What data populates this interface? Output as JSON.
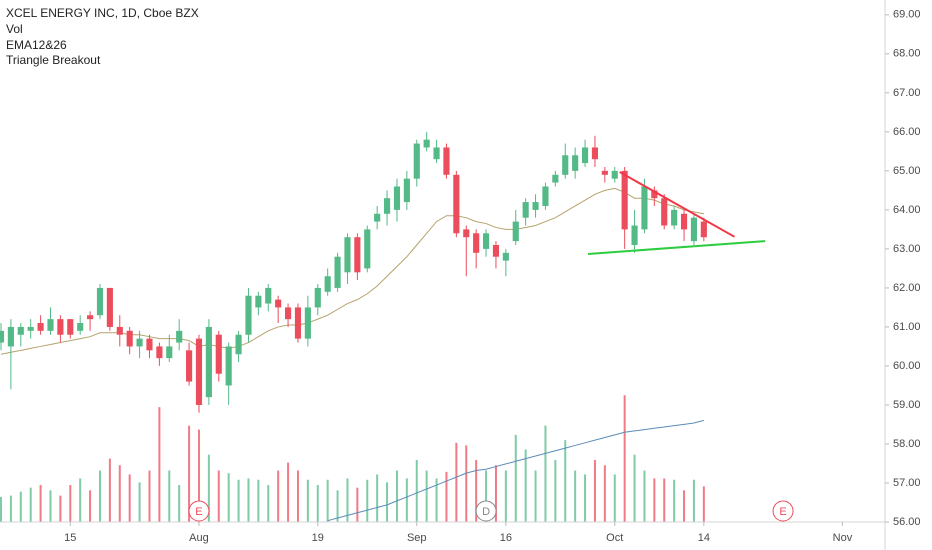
{
  "chart_data": {
    "type": "candlestick",
    "title": "XCEL ENERGY INC, 1D, Cboe BZX",
    "legend": [
      "Vol",
      "EMA12&26",
      "Triangle Breakout"
    ],
    "up_color": "#53b987",
    "down_color": "#eb4d5c",
    "open": [
      60.6,
      60.5,
      60.8,
      60.9,
      61.1,
      60.9,
      61.2,
      61.2,
      60.9,
      61.3,
      61.3,
      62.0,
      61.0,
      60.9,
      60.5,
      60.7,
      60.5,
      60.2,
      60.6,
      60.4,
      60.7,
      59.2,
      60.8,
      59.5,
      60.3,
      60.8,
      61.5,
      61.6,
      61.7,
      61.5,
      61.5,
      60.7,
      61.5,
      61.9,
      62.0,
      62.4,
      63.3,
      62.5,
      63.7,
      63.9,
      64.0,
      64.2,
      64.8,
      65.6,
      65.3,
      65.6,
      64.9,
      63.5,
      63.4,
      63.0,
      63.1,
      62.7,
      63.2,
      63.8,
      64.0,
      64.1,
      64.7,
      64.9,
      65.0,
      65.2,
      65.6,
      65.0,
      64.8,
      65.0,
      63.1,
      63.5,
      64.5,
      64.3,
      63.6,
      63.9,
      63.2,
      63.7
    ],
    "high": [
      61.1,
      61.2,
      61.1,
      61.2,
      61.3,
      61.5,
      61.3,
      61.2,
      61.3,
      61.4,
      62.1,
      62.0,
      61.3,
      61.0,
      60.9,
      60.8,
      60.6,
      60.8,
      61.2,
      60.6,
      60.8,
      61.2,
      60.9,
      60.6,
      60.9,
      62.0,
      61.9,
      62.1,
      61.8,
      61.6,
      61.6,
      61.8,
      62.1,
      62.5,
      62.9,
      63.4,
      63.4,
      63.6,
      64.1,
      64.5,
      64.8,
      65.0,
      65.8,
      66.0,
      65.8,
      65.7,
      65.0,
      63.6,
      63.5,
      63.5,
      63.2,
      63.0,
      64.0,
      64.3,
      64.4,
      64.7,
      65.0,
      65.7,
      65.6,
      65.8,
      65.9,
      65.1,
      65.1,
      65.1,
      64.0,
      64.8,
      64.6,
      64.4,
      64.1,
      64.0,
      63.9,
      63.8
    ],
    "low": [
      60.4,
      59.4,
      60.5,
      60.7,
      60.8,
      60.8,
      60.6,
      60.7,
      60.8,
      60.9,
      61.2,
      60.9,
      60.5,
      60.3,
      60.2,
      60.2,
      60.0,
      60.1,
      60.4,
      59.5,
      58.8,
      59.0,
      59.6,
      59.0,
      60.1,
      60.6,
      61.3,
      61.4,
      61.1,
      61.0,
      60.6,
      60.5,
      61.3,
      61.8,
      61.9,
      62.1,
      62.2,
      62.4,
      63.5,
      63.6,
      63.7,
      64.0,
      64.6,
      65.5,
      65.2,
      64.8,
      63.3,
      62.3,
      62.5,
      62.8,
      62.5,
      62.3,
      63.1,
      63.6,
      63.8,
      64.0,
      64.6,
      64.8,
      64.8,
      65.1,
      65.1,
      64.7,
      64.7,
      63.0,
      62.9,
      63.4,
      64.1,
      63.5,
      63.5,
      63.2,
      63.1,
      63.2
    ],
    "close": [
      60.9,
      61.0,
      61.0,
      61.0,
      60.9,
      61.2,
      60.8,
      60.8,
      61.1,
      61.2,
      62.0,
      61.0,
      60.8,
      60.5,
      60.7,
      60.4,
      60.2,
      60.5,
      60.9,
      59.6,
      59.0,
      61.0,
      59.8,
      60.5,
      60.8,
      61.8,
      61.8,
      62.0,
      61.5,
      61.2,
      60.7,
      61.5,
      62.0,
      62.3,
      62.8,
      63.3,
      62.4,
      63.5,
      63.9,
      64.3,
      64.6,
      64.8,
      65.7,
      65.8,
      65.6,
      64.9,
      63.4,
      63.3,
      62.9,
      63.4,
      62.8,
      62.9,
      63.7,
      64.2,
      64.2,
      64.6,
      64.9,
      65.4,
      65.4,
      65.6,
      65.3,
      64.9,
      65.0,
      63.5,
      63.6,
      64.6,
      64.3,
      63.6,
      64.0,
      63.5,
      63.8,
      63.3
    ],
    "volume": [
      1.9,
      2.0,
      2.3,
      2.6,
      2.8,
      2.4,
      2.0,
      2.8,
      3.3,
      2.4,
      3.9,
      4.8,
      4.3,
      3.6,
      3.0,
      3.9,
      8.7,
      3.9,
      2.8,
      7.3,
      7.0,
      5.1,
      3.9,
      3.7,
      3.2,
      3.3,
      3.2,
      2.8,
      3.9,
      4.5,
      3.9,
      3.2,
      2.8,
      3.2,
      2.4,
      3.3,
      2.6,
      3.2,
      3.6,
      3.0,
      3.9,
      3.3,
      4.7,
      3.9,
      3.3,
      3.8,
      6.0,
      5.8,
      4.7,
      3.9,
      4.3,
      3.9,
      6.6,
      5.5,
      3.9,
      7.3,
      4.7,
      6.2,
      3.9,
      3.6,
      4.7,
      4.3,
      3.6,
      9.6,
      5.1,
      3.9,
      3.3,
      3.3,
      3.2,
      2.4,
      3.2,
      2.7
    ],
    "volume_ma": {
      "color": "#5b8db8",
      "values": [
        null,
        null,
        null,
        null,
        null,
        null,
        null,
        null,
        null,
        null,
        null,
        null,
        null,
        null,
        null,
        null,
        null,
        null,
        null,
        null,
        null,
        null,
        null,
        null,
        null,
        null,
        null,
        null,
        null,
        null,
        null,
        null,
        null,
        0.1,
        0.3,
        0.5,
        0.7,
        0.9,
        1.1,
        1.3,
        1.6,
        1.9,
        2.2,
        2.5,
        2.8,
        3.1,
        3.4,
        3.7,
        3.9,
        4.0,
        4.2,
        4.4,
        4.6,
        4.8,
        5.0,
        5.2,
        5.4,
        5.6,
        5.8,
        6.0,
        6.2,
        6.4,
        6.6,
        6.8,
        6.9,
        7.0,
        7.1,
        7.2,
        7.3,
        7.4,
        7.5,
        7.7
      ]
    },
    "volume_lim": [
      0,
      10
    ],
    "ema": {
      "color": "#b5a26b",
      "values": [
        60.3,
        60.35,
        60.4,
        60.45,
        60.5,
        60.55,
        60.6,
        60.65,
        60.7,
        60.75,
        60.85,
        60.85,
        60.85,
        60.8,
        60.8,
        60.75,
        60.7,
        60.7,
        60.7,
        60.65,
        60.5,
        60.55,
        60.5,
        60.45,
        60.5,
        60.6,
        60.75,
        60.9,
        61.0,
        61.05,
        61.05,
        61.1,
        61.2,
        61.3,
        61.45,
        61.6,
        61.7,
        61.85,
        62.05,
        62.3,
        62.55,
        62.8,
        63.1,
        63.4,
        63.7,
        63.85,
        63.85,
        63.8,
        63.7,
        63.65,
        63.55,
        63.5,
        63.5,
        63.55,
        63.6,
        63.7,
        63.8,
        63.95,
        64.1,
        64.25,
        64.4,
        64.5,
        64.55,
        64.45,
        64.3,
        64.3,
        64.25,
        64.15,
        64.1,
        64.0,
        63.95,
        63.9
      ]
    },
    "trendlines": [
      {
        "color": "#f23645",
        "x": [
          62.5,
          74.1
        ],
        "y": [
          64.97,
          63.31
        ]
      },
      {
        "color": "#2ecc40",
        "x": [
          59.3,
          77.2
        ],
        "y": [
          62.87,
          63.2
        ]
      }
    ],
    "events": [
      {
        "x": 20,
        "label": "E",
        "color": "#eb4d5c"
      },
      {
        "x": 49,
        "label": "D",
        "color": "#888888"
      },
      {
        "x": 79,
        "label": "E",
        "color": "#eb4d5c"
      }
    ],
    "xlim": [
      -0.1,
      89.3
    ],
    "xticks": [
      {
        "value": 7,
        "label": "15"
      },
      {
        "value": 20,
        "label": "Aug"
      },
      {
        "value": 32,
        "label": "19"
      },
      {
        "value": 42,
        "label": "Sep"
      },
      {
        "value": 51,
        "label": "16"
      },
      {
        "value": 62,
        "label": "Oct"
      },
      {
        "value": 71,
        "label": "14"
      },
      {
        "value": 85,
        "label": "Nov"
      }
    ],
    "ylim": [
      56,
      69.38
    ],
    "yticks": [
      {
        "value": 56,
        "label": "56.00"
      },
      {
        "value": 57,
        "label": "57.00"
      },
      {
        "value": 58,
        "label": "58.00"
      },
      {
        "value": 59,
        "label": "59.00"
      },
      {
        "value": 60,
        "label": "60.00"
      },
      {
        "value": 61,
        "label": "61.00"
      },
      {
        "value": 62,
        "label": "62.00"
      },
      {
        "value": 63,
        "label": "63.00"
      },
      {
        "value": 64,
        "label": "64.00"
      },
      {
        "value": 65,
        "label": "65.00"
      },
      {
        "value": 66,
        "label": "66.00"
      },
      {
        "value": 67,
        "label": "67.00"
      },
      {
        "value": 68,
        "label": "68.00"
      },
      {
        "value": 69,
        "label": "69.00"
      }
    ]
  }
}
